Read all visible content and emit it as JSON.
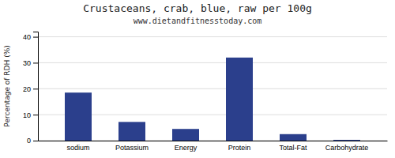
{
  "chart_data": {
    "type": "bar",
    "title": "Crustaceans, crab, blue, raw per 100g",
    "subtitle": "www.dietandfitnesstoday.com",
    "categories": [
      "sodium",
      "Potassium",
      "Energy",
      "Protein",
      "Total-Fat",
      "Carbohydrate"
    ],
    "values": [
      18.5,
      7.2,
      4.5,
      32.0,
      2.5,
      0.3
    ],
    "color": "#2b3f8c",
    "ylabel": "Percentage of RDH (%)",
    "ylim": [
      0,
      42
    ],
    "yticks": [
      0,
      10,
      20,
      30,
      40
    ],
    "grid": true
  }
}
